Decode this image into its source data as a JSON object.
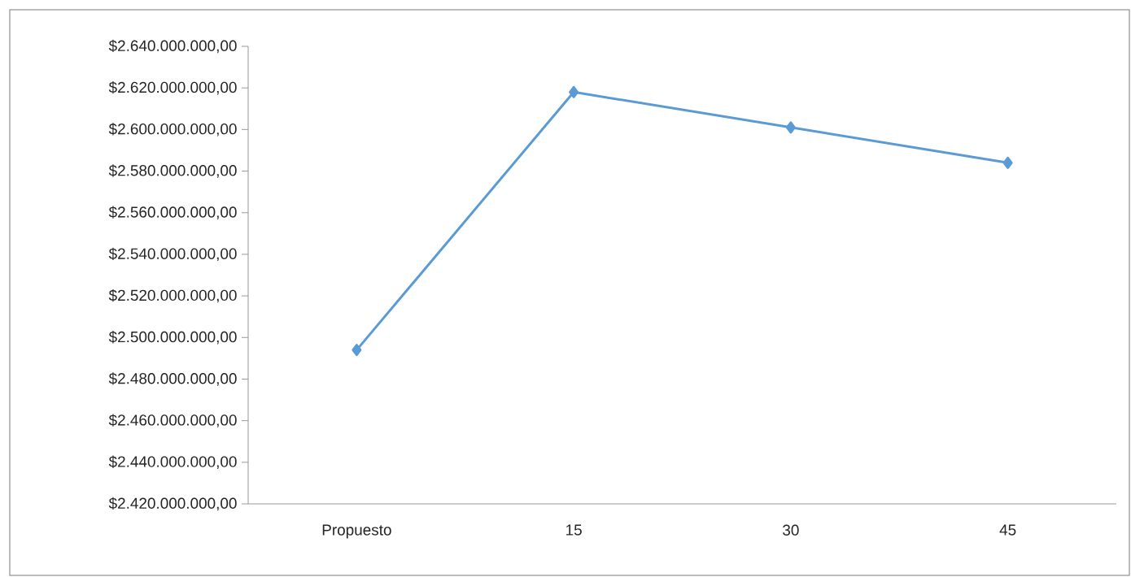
{
  "chart_data": {
    "type": "line",
    "categories": [
      "Propuesto",
      "15",
      "30",
      "45"
    ],
    "values": [
      2494000000,
      2618000000,
      2601000000,
      2584000000
    ],
    "color": "#5b9bd5",
    "marker": "diamond",
    "ylim": [
      2420000000,
      2640000000
    ],
    "yticks": [
      {
        "value": 2420000000,
        "label": "$2.420.000.000,00"
      },
      {
        "value": 2440000000,
        "label": "$2.440.000.000,00"
      },
      {
        "value": 2460000000,
        "label": "$2.460.000.000,00"
      },
      {
        "value": 2480000000,
        "label": "$2.480.000.000,00"
      },
      {
        "value": 2500000000,
        "label": "$2.500.000.000,00"
      },
      {
        "value": 2520000000,
        "label": "$2.520.000.000,00"
      },
      {
        "value": 2540000000,
        "label": "$2.540.000.000,00"
      },
      {
        "value": 2560000000,
        "label": "$2.560.000.000,00"
      },
      {
        "value": 2580000000,
        "label": "$2.580.000.000,00"
      },
      {
        "value": 2600000000,
        "label": "$2.600.000.000,00"
      },
      {
        "value": 2620000000,
        "label": "$2.620.000.000,00"
      },
      {
        "value": 2640000000,
        "label": "$2.640.000.000,00"
      }
    ]
  }
}
